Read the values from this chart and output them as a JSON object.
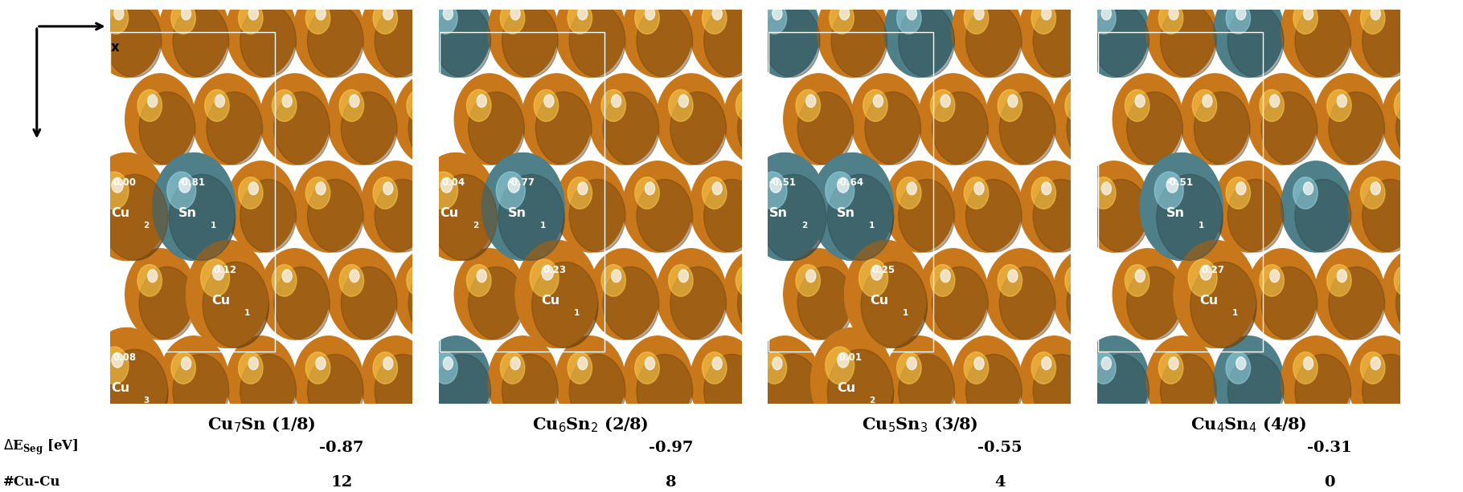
{
  "panels": [
    {
      "label": "Cu$_7$Sn (1/8)",
      "delta_e": "-0.87",
      "cu_cu": "12",
      "atom_grid": [
        [
          "cu",
          "cu",
          "cu",
          "cu",
          "cu"
        ],
        [
          "cu",
          "cu",
          "cu",
          "cu",
          "cu"
        ],
        [
          "cu",
          "sn",
          "cu",
          "cu",
          "cu"
        ],
        [
          "cu",
          "cu",
          "cu",
          "cu",
          "cu"
        ],
        [
          "cu",
          "cu",
          "cu",
          "cu",
          "cu"
        ]
      ],
      "labeled": [
        {
          "symbol": "Cu",
          "sub": "2",
          "charge": "0.00",
          "row": 2,
          "col": 0,
          "color": "cu"
        },
        {
          "symbol": "Sn",
          "sub": "1",
          "charge": "-0.81",
          "row": 2,
          "col": 1,
          "color": "sn"
        },
        {
          "symbol": "Cu",
          "sub": "1",
          "charge": "0.12",
          "row": 3,
          "col": 1,
          "color": "cu"
        },
        {
          "symbol": "Cu",
          "sub": "3",
          "charge": "0.08",
          "row": 4,
          "col": 0,
          "color": "cu"
        }
      ]
    },
    {
      "label": "Cu$_6$Sn$_2$ (2/8)",
      "delta_e": "-0.97",
      "cu_cu": "8",
      "atom_grid": [
        [
          "sn",
          "cu",
          "cu",
          "cu",
          "cu"
        ],
        [
          "cu",
          "cu",
          "cu",
          "cu",
          "cu"
        ],
        [
          "cu",
          "sn",
          "cu",
          "cu",
          "cu"
        ],
        [
          "cu",
          "cu",
          "cu",
          "cu",
          "cu"
        ],
        [
          "sn",
          "cu",
          "cu",
          "cu",
          "cu"
        ]
      ],
      "labeled": [
        {
          "symbol": "Cu",
          "sub": "2",
          "charge": "0.04",
          "row": 2,
          "col": 0,
          "color": "cu"
        },
        {
          "symbol": "Sn",
          "sub": "1",
          "charge": "-0.77",
          "row": 2,
          "col": 1,
          "color": "sn"
        },
        {
          "symbol": "Cu",
          "sub": "1",
          "charge": "0.23",
          "row": 3,
          "col": 1,
          "color": "cu"
        }
      ]
    },
    {
      "label": "Cu$_5$Sn$_3$ (3/8)",
      "delta_e": "-0.55",
      "cu_cu": "4",
      "atom_grid": [
        [
          "sn",
          "cu",
          "sn",
          "cu",
          "cu"
        ],
        [
          "cu",
          "cu",
          "cu",
          "cu",
          "cu"
        ],
        [
          "sn",
          "sn",
          "cu",
          "cu",
          "cu"
        ],
        [
          "cu",
          "cu",
          "cu",
          "cu",
          "cu"
        ],
        [
          "cu",
          "cu",
          "cu",
          "cu",
          "cu"
        ]
      ],
      "labeled": [
        {
          "symbol": "Sn",
          "sub": "2",
          "charge": "-0.51",
          "row": 2,
          "col": 0,
          "color": "sn"
        },
        {
          "symbol": "Sn",
          "sub": "1",
          "charge": "-0.64",
          "row": 2,
          "col": 1,
          "color": "sn"
        },
        {
          "symbol": "Cu",
          "sub": "1",
          "charge": "0.25",
          "row": 3,
          "col": 1,
          "color": "cu"
        },
        {
          "symbol": "Cu",
          "sub": "2",
          "charge": "0.01",
          "row": 4,
          "col": 1,
          "color": "cu"
        }
      ]
    },
    {
      "label": "Cu$_4$Sn$_4$ (4/8)",
      "delta_e": "-0.31",
      "cu_cu": "0",
      "atom_grid": [
        [
          "sn",
          "cu",
          "sn",
          "cu",
          "cu"
        ],
        [
          "cu",
          "cu",
          "cu",
          "cu",
          "cu"
        ],
        [
          "cu",
          "sn",
          "cu",
          "sn",
          "cu"
        ],
        [
          "cu",
          "cu",
          "cu",
          "cu",
          "cu"
        ],
        [
          "sn",
          "cu",
          "sn",
          "cu",
          "cu"
        ]
      ],
      "labeled": [
        {
          "symbol": "Sn",
          "sub": "1",
          "charge": "-0.51",
          "row": 2,
          "col": 1,
          "color": "sn"
        },
        {
          "symbol": "Cu",
          "sub": "1",
          "charge": "0.27",
          "row": 3,
          "col": 1,
          "color": "cu"
        }
      ]
    }
  ],
  "cu_color": "#c8781a",
  "sn_color": "#4f7f88",
  "bg_color": "#101010",
  "white_rect_color": "#ffffff"
}
